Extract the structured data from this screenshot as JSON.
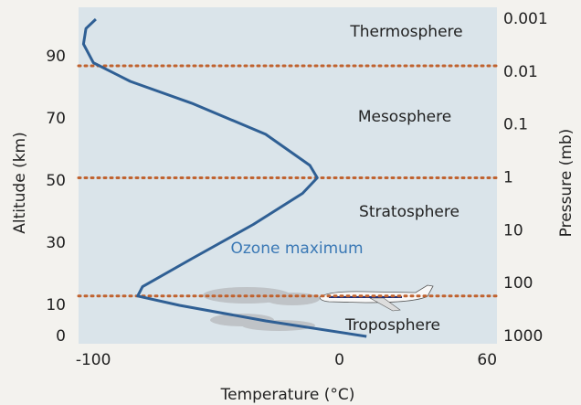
{
  "chart_data": {
    "type": "line",
    "xlabel": "Temperature (°C)",
    "ylabel": "Altitude (km)",
    "y2label": "Pressure (mb)",
    "x": [
      11,
      -30,
      -65,
      -82,
      -80,
      -60,
      -35,
      -15,
      -9,
      -12,
      -30,
      -60,
      -85,
      -100,
      -104,
      -103,
      -99
    ],
    "values": [
      0,
      5,
      10,
      13,
      16,
      25,
      36,
      46,
      51,
      55,
      65,
      75,
      82,
      88,
      94,
      99,
      102
    ],
    "color": "#2f5f94",
    "xlim": [
      -106,
      64
    ],
    "xticks": [
      -100,
      0,
      60
    ],
    "ylim": [
      0,
      102
    ],
    "yticks": [
      0,
      10,
      30,
      50,
      70,
      90
    ],
    "y2lim": [
      1000,
      0.001
    ],
    "y2scale": "log",
    "y2ticks": [
      1000,
      100,
      10,
      1,
      0.1,
      0.01,
      0.001
    ],
    "boundaries": [
      13,
      51,
      87
    ],
    "boundary_color": "#c0622f",
    "layers": [
      "Thermosphere",
      "Mesosphere",
      "Stratosphere",
      "Troposphere"
    ],
    "annotation": "Ozone maximum",
    "annotation_color": "#3a78b5",
    "grid": false
  }
}
